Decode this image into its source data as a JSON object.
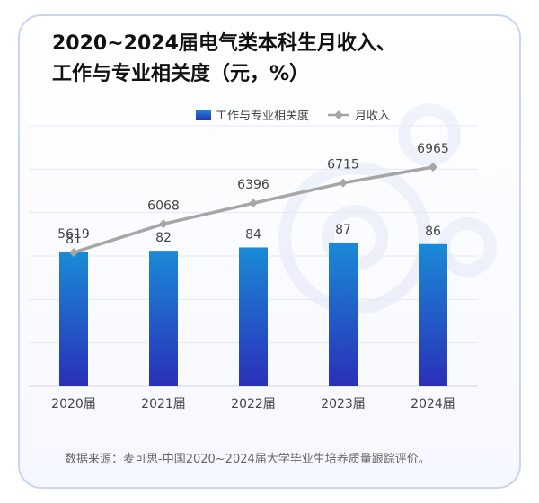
{
  "title_lines": [
    "2020~2024届电气类本科生月收入、",
    "工作与专业相关度（元，%）"
  ],
  "source": "数据来源：麦可思-中国2020~2024届大学毕业生培养质量跟踪评价。",
  "colors": {
    "bar_top": "#1a8ad6",
    "bar_bottom": "#2a2fb8",
    "line": "#a6a6a6",
    "text": "#444444"
  },
  "chart_data": {
    "type": "bar+line",
    "categories": [
      "2020届",
      "2021届",
      "2022届",
      "2023届",
      "2024届"
    ],
    "series": [
      {
        "name": "工作与专业相关度",
        "type": "bar",
        "values": [
          81,
          82,
          84,
          87,
          86
        ]
      },
      {
        "name": "月收入",
        "type": "line",
        "values": [
          5619,
          6068,
          6396,
          6715,
          6965
        ]
      }
    ],
    "legend_position": "top-right",
    "grid": true
  }
}
